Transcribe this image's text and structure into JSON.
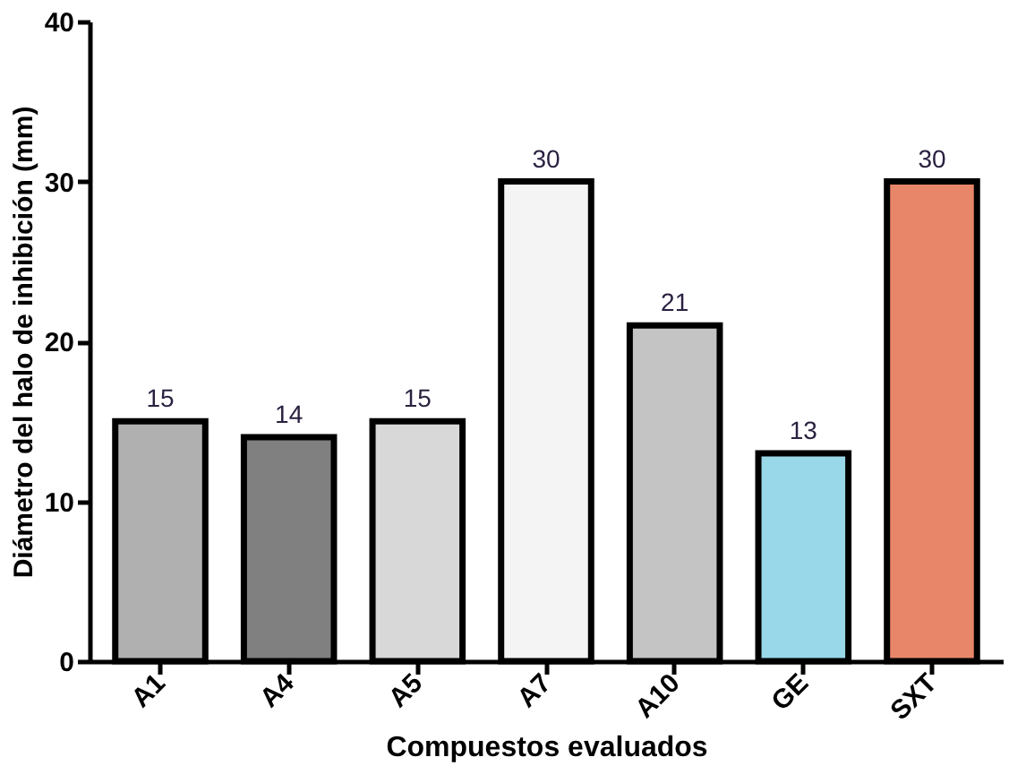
{
  "chart_data": {
    "type": "bar",
    "xlabel": "Compuestos evaluados",
    "ylabel": "Diámetro del halo de inhibición (mm)",
    "categories": [
      "A1",
      "A4",
      "A5",
      "A7",
      "A10",
      "GE",
      "SXT"
    ],
    "values": [
      15,
      14,
      15,
      30,
      21,
      13,
      30
    ],
    "colors": [
      "#b0b0b0",
      "#808080",
      "#d8d8d8",
      "#f4f4f4",
      "#c4c4c4",
      "#99d8e8",
      "#e8866a"
    ],
    "ylim": [
      0,
      40
    ],
    "yticks": [
      0,
      10,
      20,
      30,
      40
    ],
    "grid": false,
    "data_labels": true
  }
}
